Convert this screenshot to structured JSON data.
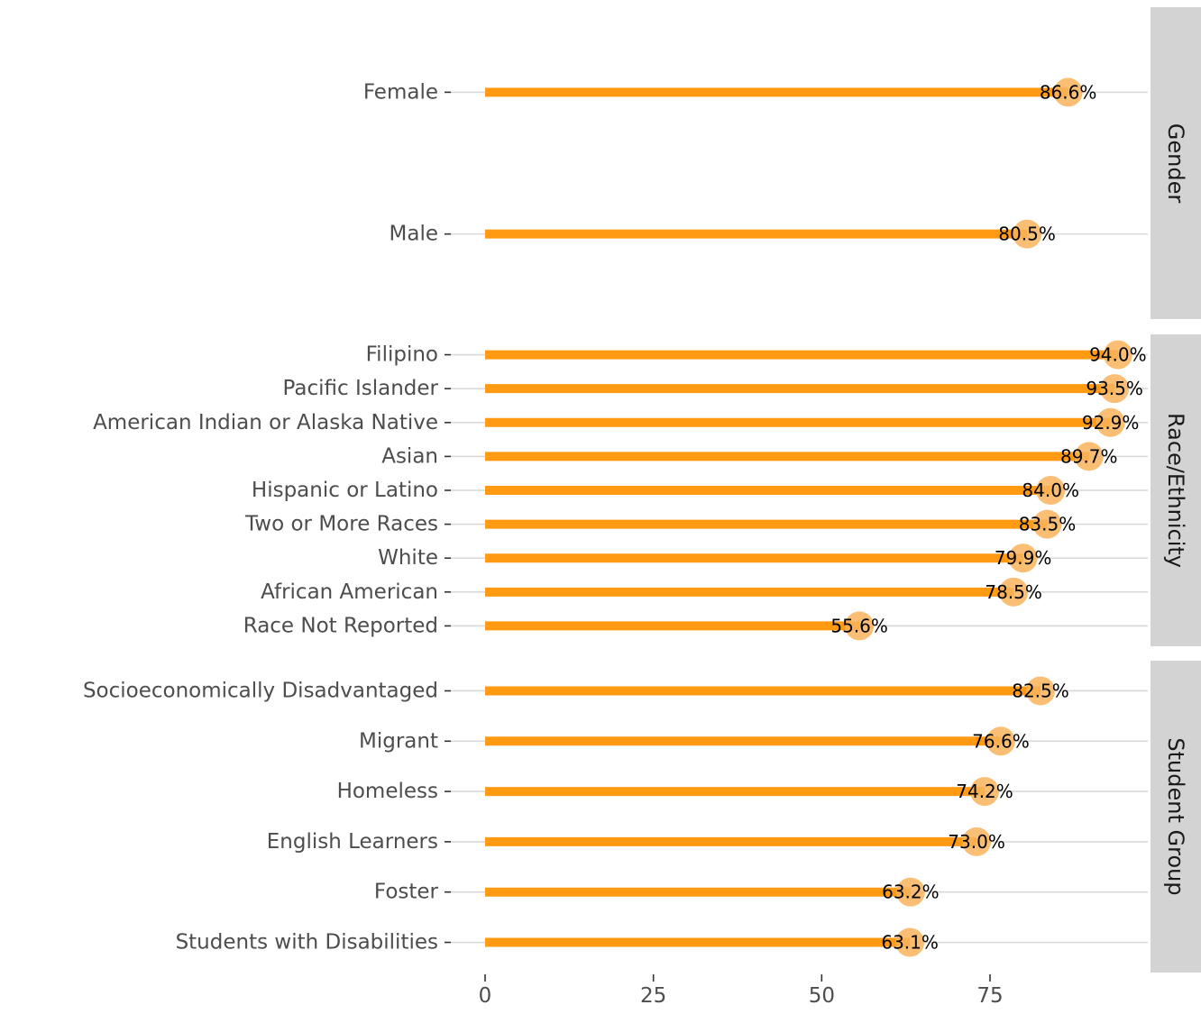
{
  "chart_data": {
    "type": "lollipop",
    "orientation": "horizontal",
    "xlim": [
      0,
      100
    ],
    "x_ticks": [
      0,
      25,
      50,
      75
    ],
    "value_suffix": "%",
    "colors": {
      "segment": "#ff9a12",
      "point": "#f9b35c",
      "strip": "#d3d3d3",
      "gridline": "#d9d9d9",
      "axis_text": "#4d4d4d"
    },
    "facets": [
      {
        "label": "Gender",
        "items": [
          {
            "label": "Female",
            "value": 86.6,
            "value_label": "86.6%"
          },
          {
            "label": "Male",
            "value": 80.5,
            "value_label": "80.5%"
          }
        ]
      },
      {
        "label": "Race/Ethnicity",
        "items": [
          {
            "label": "Filipino",
            "value": 94.0,
            "value_label": "94.0%"
          },
          {
            "label": "Pacific Islander",
            "value": 93.5,
            "value_label": "93.5%"
          },
          {
            "label": "American Indian or Alaska Native",
            "value": 92.9,
            "value_label": "92.9%"
          },
          {
            "label": "Asian",
            "value": 89.7,
            "value_label": "89.7%"
          },
          {
            "label": "Hispanic or Latino",
            "value": 84.0,
            "value_label": "84.0%"
          },
          {
            "label": "Two or More Races",
            "value": 83.5,
            "value_label": "83.5%"
          },
          {
            "label": "White",
            "value": 79.9,
            "value_label": "79.9%"
          },
          {
            "label": "African American",
            "value": 78.5,
            "value_label": "78.5%"
          },
          {
            "label": "Race Not Reported",
            "value": 55.6,
            "value_label": "55.6%"
          }
        ]
      },
      {
        "label": "Student Group",
        "items": [
          {
            "label": "Socioeconomically Disadvantaged",
            "value": 82.5,
            "value_label": "82.5%"
          },
          {
            "label": "Migrant",
            "value": 76.6,
            "value_label": "76.6%"
          },
          {
            "label": "Homeless",
            "value": 74.2,
            "value_label": "74.2%"
          },
          {
            "label": "English Learners",
            "value": 73.0,
            "value_label": "73.0%"
          },
          {
            "label": "Foster",
            "value": 63.2,
            "value_label": "63.2%"
          },
          {
            "label": "Students with Disabilities",
            "value": 63.1,
            "value_label": "63.1%"
          }
        ]
      }
    ]
  }
}
